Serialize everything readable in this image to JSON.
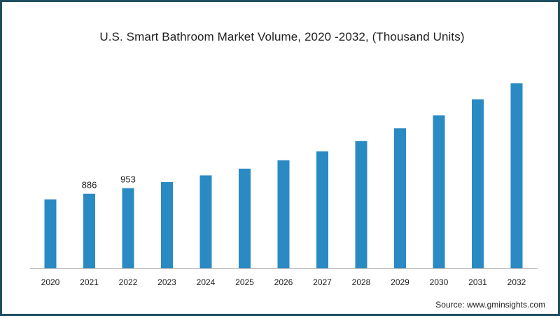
{
  "chart_data": {
    "type": "bar",
    "title": "U.S. Smart Bathroom Market Volume, 2020 -2032, (Thousand Units)",
    "categories": [
      "2020",
      "2021",
      "2022",
      "2023",
      "2024",
      "2025",
      "2026",
      "2027",
      "2028",
      "2029",
      "2030",
      "2031",
      "2032"
    ],
    "values": [
      820,
      886,
      953,
      1025,
      1105,
      1185,
      1285,
      1390,
      1515,
      1665,
      1820,
      2010,
      2200
    ],
    "data_labels": {
      "1": "886",
      "2": "953"
    },
    "bar_color": "#2a8ac4",
    "axis_color": "#bfbfbf",
    "ylim": [
      0,
      2200
    ],
    "grid": false,
    "legend": "none"
  },
  "source": "Source: www.gminsights.com"
}
